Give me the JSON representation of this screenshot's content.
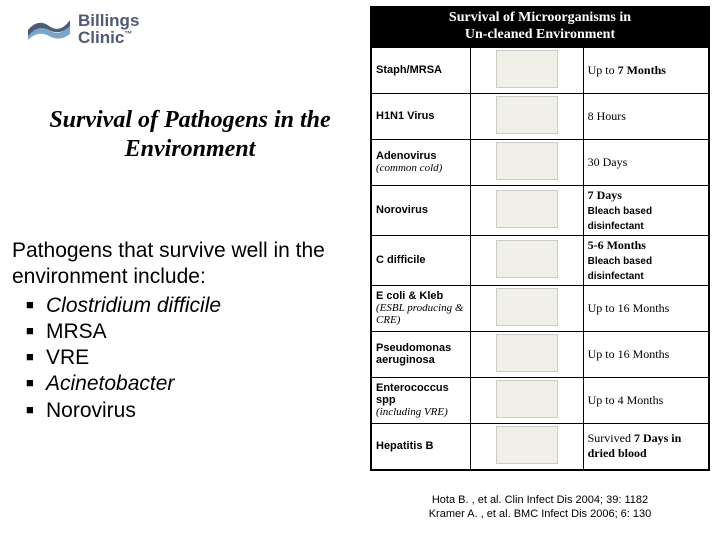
{
  "logo": {
    "name": "Billings",
    "sub": "Clinic"
  },
  "title": "Survival of Pathogens in the Environment",
  "intro": "Pathogens that survive well in the environment include:",
  "bullets": [
    {
      "text": "Clostridium difficile",
      "italic": true
    },
    {
      "text": "MRSA",
      "italic": false
    },
    {
      "text": "VRE",
      "italic": false
    },
    {
      "text": "Acinetobacter",
      "italic": true
    },
    {
      "text": "Norovirus",
      "italic": false
    }
  ],
  "table": {
    "header_line1": "Survival of Microorganisms in",
    "header_line2": "Un-cleaned Environment",
    "rows": [
      {
        "name": "Staph/MRSA",
        "name_note": "",
        "survival": "Up to <b>7 Months</b>",
        "note": ""
      },
      {
        "name": "H1N1 Virus",
        "name_note": "",
        "survival": "8 Hours",
        "note": ""
      },
      {
        "name": "Adenovirus",
        "name_note": "(common cold)",
        "survival": "30 Days",
        "note": ""
      },
      {
        "name": "Norovirus",
        "name_note": "",
        "survival": "<b>7 Days</b>",
        "note": "Bleach based disinfectant"
      },
      {
        "name": "C difficile",
        "name_note": "",
        "survival": "<b>5-6 Months</b>",
        "note": "Bleach based disinfectant"
      },
      {
        "name": "E coli & Kleb",
        "name_note": "(ESBL producing & CRE)",
        "survival": "Up to 16 Months",
        "note": ""
      },
      {
        "name": "Pseudomonas aeruginosa",
        "name_note": "",
        "survival": "Up to 16 Months",
        "note": ""
      },
      {
        "name": "Enterococcus spp",
        "name_note": "(including VRE)",
        "survival": "Up to 4 Months",
        "note": ""
      },
      {
        "name": "Hepatitis B",
        "name_note": "",
        "survival": "Survived <b>7 Days in dried blood</b>",
        "note": ""
      }
    ]
  },
  "citations": [
    "Hota B. , et al. Clin Infect Dis 2004; 39: 1182",
    "Kramer A. , et al. BMC Infect Dis 2006; 6: 130"
  ],
  "colors": {
    "text": "#000000",
    "bg": "#ffffff",
    "logo": "#4e5b73",
    "logo_accent": "#7aa6c9",
    "header_bg": "#000000",
    "header_fg": "#ffffff"
  }
}
